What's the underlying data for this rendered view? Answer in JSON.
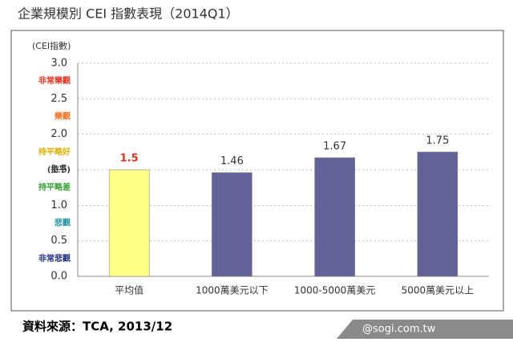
{
  "chart_data": {
    "type": "bar",
    "title": "企業規模別 CEI 指數表現（2014Q1）",
    "y_label": "(CEI指數)",
    "categories": [
      "平均值",
      "1000萬美元以下",
      "1000-5000萬美元",
      "5000萬美元以上"
    ],
    "values": [
      1.5,
      1.46,
      1.67,
      1.75
    ],
    "colors": [
      "#ffff88",
      "#626299",
      "#626299",
      "#626299"
    ],
    "value_label_colors": [
      "#e03020",
      "#333333",
      "#333333",
      "#333333"
    ],
    "ylim": [
      0,
      3
    ],
    "yticks": [
      {
        "value": 0,
        "label": "0.0"
      },
      {
        "value": 0.5,
        "label": "0.5"
      },
      {
        "value": 1,
        "label": "1.0"
      },
      {
        "value": 1.5,
        "label": "1.5"
      },
      {
        "value": 2,
        "label": "2.0"
      },
      {
        "value": 2.5,
        "label": "2.5"
      },
      {
        "value": 3,
        "label": "3.0"
      }
    ],
    "grid": true,
    "zones": [
      {
        "label": "非常樂觀",
        "y": 2.75,
        "color": "#e03020"
      },
      {
        "label": "樂觀",
        "y": 2.25,
        "color": "#f07020"
      },
      {
        "label": "持平略好",
        "y": 1.75,
        "color": "#e0b000"
      },
      {
        "label": "(持平)",
        "y": 1.5,
        "color": "#333333"
      },
      {
        "label": "持平略差",
        "y": 1.25,
        "color": "#30a030"
      },
      {
        "label": "悲觀",
        "y": 0.75,
        "color": "#2090a0"
      },
      {
        "label": "非常悲觀",
        "y": 0.25,
        "color": "#203080"
      }
    ]
  },
  "footer": {
    "source": "資料來源：TCA, 2013/12",
    "watermark": "@sogi.com.tw"
  }
}
